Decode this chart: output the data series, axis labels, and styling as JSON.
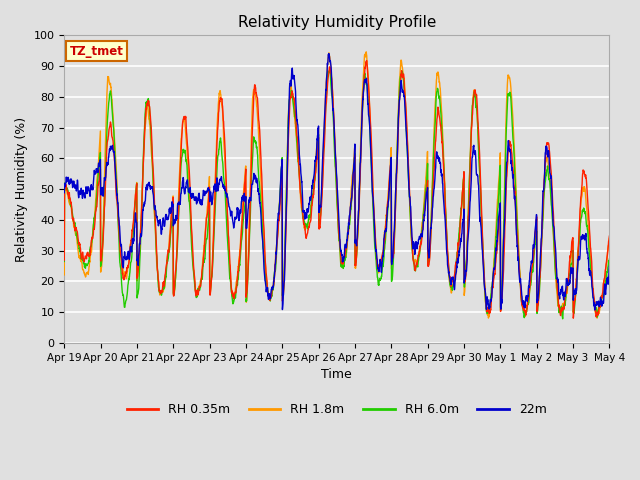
{
  "title": "Relativity Humidity Profile",
  "xlabel": "Time",
  "ylabel": "Relativity Humidity (%)",
  "ylim": [
    0,
    100
  ],
  "background_color": "#e0e0e0",
  "grid_color": "#ffffff",
  "annotation_text": "TZ_tmet",
  "annotation_bg": "#ffffcc",
  "annotation_border": "#cc6600",
  "annotation_text_color": "#cc0000",
  "line_colors": {
    "RH 0.35m": "#ff2200",
    "RH 1.8m": "#ff9900",
    "RH 6.0m": "#22cc00",
    "22m": "#0000cc"
  },
  "legend_labels": [
    "RH 0.35m",
    "RH 1.8m",
    "RH 6.0m",
    "22m"
  ],
  "tick_labels": [
    "Apr 19",
    "Apr 20",
    "Apr 21",
    "Apr 22",
    "Apr 23",
    "Apr 24",
    "Apr 25",
    "Apr 26",
    "Apr 27",
    "Apr 28",
    "Apr 29",
    "Apr 30",
    "May 1",
    "May 2",
    "May 3",
    "May 4"
  ],
  "tick_positions": [
    0,
    1,
    2,
    3,
    4,
    5,
    6,
    7,
    8,
    9,
    10,
    11,
    12,
    13,
    14,
    15
  ],
  "yticks": [
    0,
    10,
    20,
    30,
    40,
    50,
    60,
    70,
    80,
    90,
    100
  ],
  "figsize": [
    6.4,
    4.8
  ],
  "dpi": 100
}
